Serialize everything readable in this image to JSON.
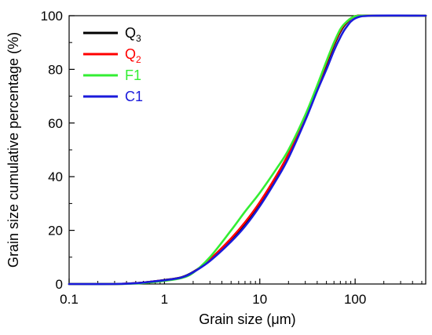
{
  "chart_data": {
    "type": "line",
    "title": "",
    "xlabel": "Grain size (μm)",
    "ylabel": "Grain size cumulative percentage (%)",
    "xscale": "log",
    "xlim": [
      0.1,
      550
    ],
    "ylim": [
      0,
      100
    ],
    "xticks": [
      0.1,
      1,
      10,
      100
    ],
    "xtick_labels": [
      "0.1",
      "1",
      "10",
      "100"
    ],
    "yticks": [
      0,
      20,
      40,
      60,
      80,
      100
    ],
    "ytick_labels": [
      "0",
      "20",
      "40",
      "60",
      "80",
      "100"
    ],
    "grid": false,
    "legend_position": "top-left",
    "legend": [
      {
        "base": "Q",
        "sub": "3",
        "color": "#000000"
      },
      {
        "base": "Q",
        "sub": "2",
        "color": "#ff0000"
      },
      {
        "base": "F1",
        "sub": "",
        "color": "#33ee33"
      },
      {
        "base": "C1",
        "sub": "",
        "color": "#1a1adb"
      }
    ],
    "series": [
      {
        "name": "Q3",
        "color": "#000000",
        "x": [
          0.1,
          0.3,
          0.5,
          0.7,
          1.0,
          1.5,
          2.0,
          3.0,
          5.0,
          7.0,
          10,
          15,
          20,
          30,
          40,
          50,
          60,
          70,
          80,
          100,
          150,
          550
        ],
        "y": [
          0,
          0,
          0.3,
          0.8,
          1.5,
          2.5,
          4.5,
          9.0,
          16.5,
          22.5,
          30,
          40,
          48,
          62,
          73,
          82,
          89,
          94,
          97,
          99.8,
          100,
          100
        ]
      },
      {
        "name": "Q2",
        "color": "#ff0000",
        "x": [
          0.1,
          0.3,
          0.5,
          0.7,
          1.0,
          1.5,
          2.0,
          3.0,
          5.0,
          7.0,
          10,
          15,
          20,
          30,
          40,
          50,
          60,
          70,
          80,
          100,
          150,
          550
        ],
        "y": [
          0,
          0,
          0.3,
          0.8,
          1.4,
          2.4,
          4.4,
          9.2,
          17.0,
          23.0,
          30.5,
          40.5,
          48.5,
          62.5,
          73.5,
          82.5,
          89.5,
          94.5,
          97.3,
          99.8,
          100,
          100
        ]
      },
      {
        "name": "F1",
        "color": "#33ee33",
        "x": [
          0.1,
          0.3,
          0.5,
          0.7,
          1.0,
          1.5,
          2.0,
          3.0,
          5.0,
          7.0,
          10,
          15,
          20,
          30,
          40,
          50,
          60,
          70,
          80,
          100,
          150,
          550
        ],
        "y": [
          0,
          0,
          0.2,
          0.6,
          1.2,
          2.2,
          4.2,
          10.0,
          20.0,
          27.0,
          34,
          43,
          50,
          63,
          74,
          83,
          90,
          95,
          97.5,
          99.8,
          100,
          100
        ]
      },
      {
        "name": "C1",
        "color": "#1a1adb",
        "x": [
          0.1,
          0.3,
          0.5,
          0.7,
          1.0,
          1.5,
          2.0,
          3.0,
          5.0,
          7.0,
          10,
          15,
          20,
          30,
          40,
          50,
          60,
          70,
          80,
          100,
          150,
          550
        ],
        "y": [
          0,
          0,
          0.3,
          0.8,
          1.4,
          2.4,
          4.4,
          8.6,
          15.8,
          21.5,
          29,
          39,
          47,
          61,
          72,
          80,
          87,
          92,
          95.5,
          99,
          100,
          100
        ]
      }
    ]
  }
}
